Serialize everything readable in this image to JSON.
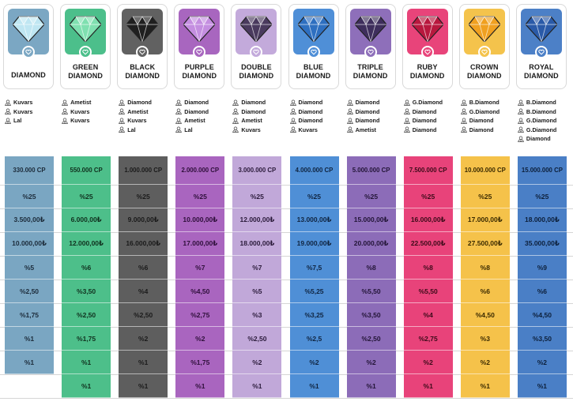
{
  "tiers": [
    {
      "title_lines": [
        "DIAMOND"
      ],
      "color": "#7aa6c2",
      "card_color": "#7ba7c3",
      "gem_color": "#bfe6f2",
      "text_color": "#1c2b3a",
      "requirements": [
        "Kuvars",
        "Kuvars",
        "Lal"
      ],
      "rows": [
        "330.000 CP",
        "%25",
        "3.500,00₺",
        "10.000,00₺",
        "%5",
        "%2,50",
        "%1,75",
        "%1",
        "%1"
      ]
    },
    {
      "title_lines": [
        "GREEN",
        "DIAMOND"
      ],
      "color": "#4dbf8a",
      "card_color": "#4cbf8b",
      "gem_color": "#7fe0b0",
      "text_color": "#10301e",
      "requirements": [
        "Ametist",
        "Kuvars",
        "Kuvars"
      ],
      "rows": [
        "550.000 CP",
        "%25",
        "6.000,00₺",
        "12.000,00₺",
        "%6",
        "%3,50",
        "%2,50",
        "%1,75",
        "%1",
        "%1"
      ]
    },
    {
      "title_lines": [
        "BLACK",
        "DIAMOND"
      ],
      "color": "#5e5e5e",
      "card_color": "#616161",
      "gem_color": "#1f1f1f",
      "text_color": "#1a1a1a",
      "requirements": [
        "Diamond",
        "Ametist",
        "Kuvars",
        "Lal"
      ],
      "rows": [
        "1.000.000 CP",
        "%25",
        "9.000,00₺",
        "16.000,00₺",
        "%6",
        "%4",
        "%2,50",
        "%2",
        "%1",
        "%1"
      ]
    },
    {
      "title_lines": [
        "PURPLE",
        "DIAMOND"
      ],
      "color": "#a965bf",
      "card_color": "#a866bf",
      "gem_color": "#c48ee0",
      "text_color": "#2e0f3a",
      "requirements": [
        "Diamond",
        "Diamond",
        "Ametist",
        "Lal"
      ],
      "rows": [
        "2.000.000 CP",
        "%25",
        "10.000,00₺",
        "17.000,00₺",
        "%7",
        "%4,50",
        "%2,75",
        "%2",
        "%1,75",
        "%1"
      ]
    },
    {
      "title_lines": [
        "DOUBLE",
        "DIAMOND"
      ],
      "color": "#c1a8d9",
      "card_color": "#c3aadb",
      "gem_color": "#4a3a5e",
      "text_color": "#2a1a3a",
      "requirements": [
        "Diamond",
        "Diamond",
        "Ametist",
        "Kuvars"
      ],
      "rows": [
        "3.000.000 CP",
        "%25",
        "12.000,00₺",
        "18.000,00₺",
        "%7",
        "%5",
        "%3",
        "%2,50",
        "%2",
        "%1"
      ]
    },
    {
      "title_lines": [
        "BLUE",
        "DIAMOND"
      ],
      "color": "#4f8fd6",
      "card_color": "#4f8fd7",
      "gem_color": "#2e6fc0",
      "text_color": "#0f2440",
      "requirements": [
        "Diamond",
        "Diamond",
        "Diamond",
        "Kuvars"
      ],
      "rows": [
        "4.000.000 CP",
        "%25",
        "13.000,00₺",
        "19.000,00₺",
        "%7,5",
        "%5,25",
        "%3,25",
        "%2,5",
        "%2",
        "%1"
      ]
    },
    {
      "title_lines": [
        "TRIPLE",
        "DIAMOND"
      ],
      "color": "#8c6cb8",
      "card_color": "#8e6fba",
      "gem_color": "#3e2e5c",
      "text_color": "#221436",
      "requirements": [
        "Diamond",
        "Diamond",
        "Diamond",
        "Ametist"
      ],
      "rows": [
        "5.000.000 CP",
        "%25",
        "15.000,00₺",
        "20.000,00₺",
        "%8",
        "%5,50",
        "%3,50",
        "%2,50",
        "%2",
        "%1"
      ]
    },
    {
      "title_lines": [
        "RUBY",
        "DIAMOND"
      ],
      "color": "#e8437a",
      "card_color": "#e8447a",
      "gem_color": "#b8183e",
      "text_color": "#3a0a18",
      "requirements": [
        "G.Diamond",
        "Diamond",
        "Diamond",
        "Diamond"
      ],
      "rows": [
        "7.500.000 CP",
        "%25",
        "16.000,00₺",
        "22.500,00₺",
        "%8",
        "%5,50",
        "%4",
        "%2,75",
        "%2",
        "%1"
      ]
    },
    {
      "title_lines": [
        "CROWN",
        "DIAMOND"
      ],
      "color": "#f5c24a",
      "card_color": "#f4c34c",
      "gem_color": "#f0a020",
      "text_color": "#3a2a00",
      "requirements": [
        "B.Diamond",
        "G.Diamond",
        "Diamond",
        "Diamond"
      ],
      "rows": [
        "10.000.000 CP",
        "%25",
        "17.000,00₺",
        "27.500,00₺",
        "%8",
        "%6",
        "%4,50",
        "%3",
        "%2",
        "%1"
      ]
    },
    {
      "title_lines": [
        "ROYAL",
        "DIAMOND"
      ],
      "color": "#4a7fc6",
      "card_color": "#4c80c7",
      "gem_color": "#2a5aa8",
      "text_color": "#0c1f3a",
      "requirements": [
        "B.Diamond",
        "B.Diamond",
        "G.Diamond",
        "G.Diamond",
        "Diamond"
      ],
      "rows": [
        "15.000.000 CP",
        "%25",
        "18.000,00₺",
        "35.000,00₺",
        "%9",
        "%6",
        "%4,50",
        "%3,50",
        "%2",
        "%1"
      ]
    }
  ]
}
